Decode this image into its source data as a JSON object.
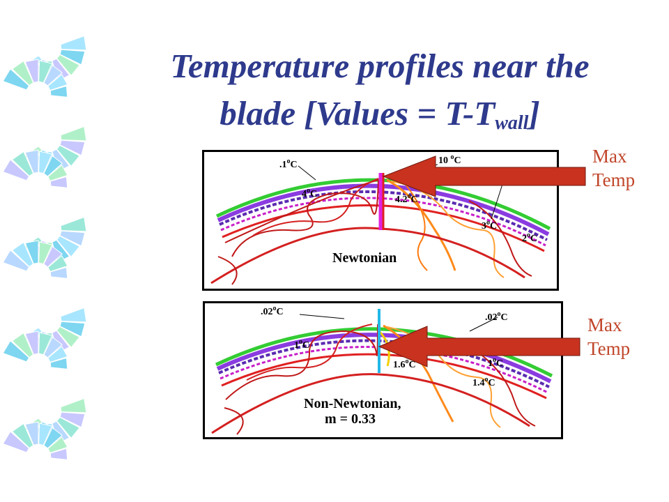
{
  "title": {
    "line1": "Temperature profiles near the",
    "line2_main": "blade [Values = T-T",
    "line2_sub": "wall",
    "line2_end": "]"
  },
  "panel_newtonian": {
    "caption": "Newtonian",
    "labels": [
      {
        "value": ".1",
        "unit": "C"
      },
      {
        "value": "10",
        "unit": "C"
      },
      {
        "value": "4",
        "unit": "C"
      },
      {
        "value": "4.2",
        "unit": "C"
      },
      {
        "value": "3",
        "unit": "C"
      },
      {
        "value": "2",
        "unit": "C"
      }
    ],
    "degree": "o"
  },
  "panel_nonnewtonian": {
    "caption_line1": "Non-Newtonian,",
    "caption_line2": "m = 0.33",
    "labels": [
      {
        "value": ".02",
        "unit": "C"
      },
      {
        "value": ".02",
        "unit": "C"
      },
      {
        "value": "1",
        "unit": "C"
      },
      {
        "value": "1.6",
        "unit": "C"
      },
      {
        "value": "1",
        "unit": "C"
      },
      {
        "value": "1.4",
        "unit": "C"
      }
    ],
    "degree": "o"
  },
  "annotations": {
    "max_temp_1": {
      "line1": "Max",
      "line2": "Temp"
    },
    "max_temp_2": {
      "line1": "Max",
      "line2": "Temp"
    }
  },
  "colors": {
    "title": "#2e3a8c",
    "annotation": "#c0452a",
    "arrow": "#c8321e",
    "contour_green": "#33cc33",
    "contour_purple": "#7a2bd6",
    "contour_red": "#d42020",
    "contour_orange": "#ff8a1a"
  }
}
